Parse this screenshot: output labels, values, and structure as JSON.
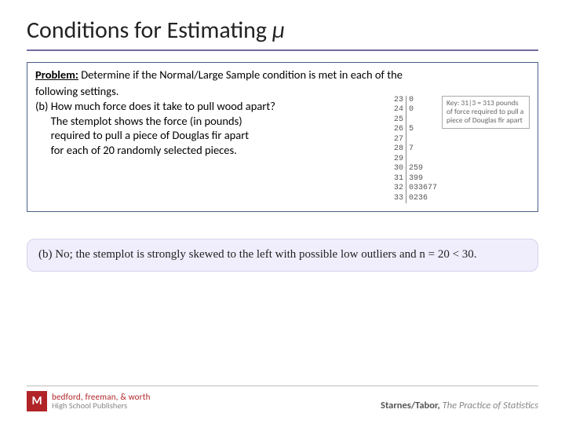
{
  "title_prefix": "Conditions for Estimating ",
  "title_symbol": "µ",
  "problem": {
    "label": "Problem:",
    "lead": " Determine if the Normal/Large Sample condition is met in each of the",
    "line1": "following settings.",
    "line2": "(b) How much force does it take to pull wood apart?",
    "line3": "      The stemplot shows the force (in pounds)",
    "line4": "      required to pull a piece of Douglas fir apart",
    "line5": "      for each of 20 randomly selected pieces."
  },
  "stemplot": {
    "stems": [
      "23",
      "24",
      "25",
      "26",
      "27",
      "28",
      "29",
      "30",
      "31",
      "32",
      "33"
    ],
    "leaves": [
      "0",
      "0",
      "",
      "5",
      "",
      "7",
      "",
      "259",
      "399",
      "033677",
      "0236"
    ]
  },
  "key_text": "Key: 31|3 = 313 pounds of force required to pull a piece of Douglas fir apart",
  "answer": "(b) No; the stemplot is strongly skewed to the left with possible low outliers and n = 20 < 30.",
  "footer": {
    "pub_top": "bedford, freeman, & worth",
    "pub_bot": "High School Publishers",
    "logo_letter": "M",
    "authors": "Starnes/Tabor, ",
    "book": "The Practice of Statistics"
  },
  "colors": {
    "rule": "#776ba0",
    "box_border": "#4c5f8a",
    "answer_bg": "#f0eefc",
    "logo_bg": "#b02428"
  }
}
